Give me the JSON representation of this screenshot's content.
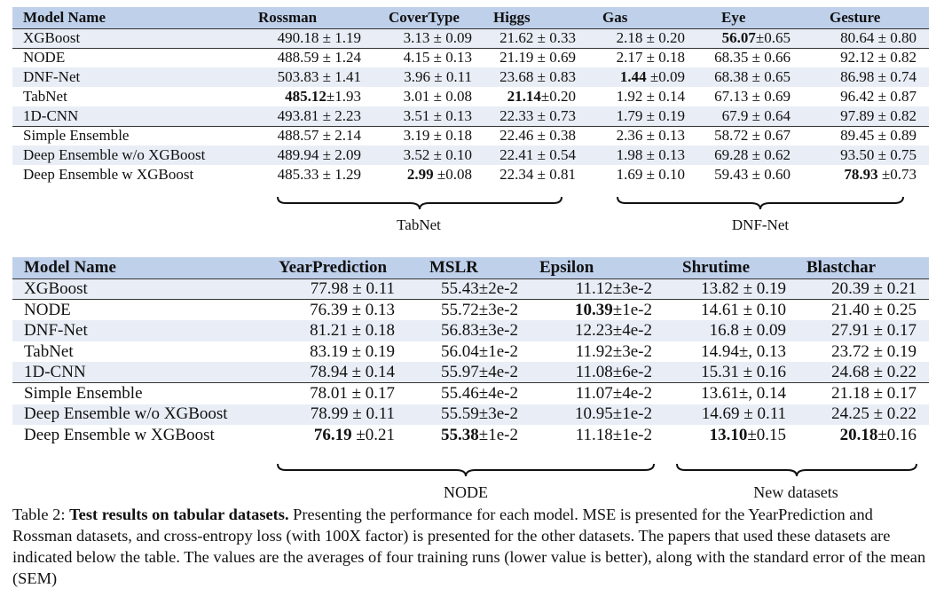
{
  "table1": {
    "headers": [
      "Model Name",
      "Rossman",
      "CoverType",
      "Higgs",
      "Gas",
      "Eye",
      "Gesture"
    ],
    "rows": [
      {
        "model": "XGBoost",
        "cells": [
          [
            "490.18 ± 1.19",
            ""
          ],
          [
            "3.13 ± 0.09",
            ""
          ],
          [
            "21.62 ± 0.33",
            ""
          ],
          [
            "2.18 ± 0.20",
            ""
          ],
          [
            "56.07",
            "±0.65"
          ],
          [
            "80.64 ± 0.80",
            ""
          ]
        ]
      },
      {
        "model": "NODE",
        "cells": [
          [
            "488.59 ± 1.24",
            ""
          ],
          [
            "4.15 ± 0.13",
            ""
          ],
          [
            "21.19 ± 0.69",
            ""
          ],
          [
            "2.17 ± 0.18",
            ""
          ],
          [
            "68.35 ± 0.66",
            ""
          ],
          [
            "92.12 ± 0.82",
            ""
          ]
        ]
      },
      {
        "model": "DNF-Net",
        "cells": [
          [
            "503.83 ± 1.41",
            ""
          ],
          [
            "3.96 ± 0.11",
            ""
          ],
          [
            "23.68 ± 0.83",
            ""
          ],
          [
            "1.44",
            " ±0.09"
          ],
          [
            "68.38 ± 0.65",
            ""
          ],
          [
            "86.98 ± 0.74",
            ""
          ]
        ]
      },
      {
        "model": "TabNet",
        "cells": [
          [
            "485.12",
            "±1.93"
          ],
          [
            "3.01 ± 0.08",
            ""
          ],
          [
            "21.14",
            "±0.20"
          ],
          [
            "1.92 ± 0.14",
            ""
          ],
          [
            "67.13 ± 0.69",
            ""
          ],
          [
            "96.42 ± 0.87",
            ""
          ]
        ]
      },
      {
        "model": "1D-CNN",
        "cells": [
          [
            "493.81 ± 2.23",
            ""
          ],
          [
            "3.51 ± 0.13",
            ""
          ],
          [
            "22.33 ± 0.73",
            ""
          ],
          [
            "1.79 ± 0.19",
            ""
          ],
          [
            "67.9 ± 0.64",
            ""
          ],
          [
            "97.89 ± 0.82",
            ""
          ]
        ]
      },
      {
        "model": "Simple Ensemble",
        "cells": [
          [
            "488.57 ± 2.14",
            ""
          ],
          [
            "3.19 ± 0.18",
            ""
          ],
          [
            "22.46 ± 0.38",
            ""
          ],
          [
            "2.36 ± 0.13",
            ""
          ],
          [
            "58.72 ± 0.67",
            ""
          ],
          [
            "89.45 ± 0.89",
            ""
          ]
        ]
      },
      {
        "model": "Deep Ensemble w/o XGBoost",
        "cells": [
          [
            "489.94 ± 2.09",
            ""
          ],
          [
            "3.52 ± 0.10",
            ""
          ],
          [
            "22.41 ± 0.54",
            ""
          ],
          [
            "1.98 ± 0.13",
            ""
          ],
          [
            "69.28 ± 0.62",
            ""
          ],
          [
            "93.50 ± 0.75",
            ""
          ]
        ]
      },
      {
        "model": "Deep Ensemble w XGBoost",
        "cells": [
          [
            "485.33 ± 1.29",
            ""
          ],
          [
            "2.99",
            " ±0.08"
          ],
          [
            "22.34 ± 0.81",
            ""
          ],
          [
            "1.69 ± 0.10",
            ""
          ],
          [
            "59.43 ± 0.60",
            ""
          ],
          [
            "78.93",
            " ±0.73"
          ]
        ]
      }
    ],
    "brace_labels": [
      "TabNet",
      "DNF-Net"
    ]
  },
  "table2": {
    "headers": [
      "Model Name",
      "YearPrediction",
      "MSLR",
      "Epsilon",
      "Shrutime",
      "Blastchar"
    ],
    "rows": [
      {
        "model": "XGBoost",
        "cells": [
          [
            "77.98 ± 0.11",
            ""
          ],
          [
            "55.43±2e-2",
            ""
          ],
          [
            "11.12±3e-2",
            ""
          ],
          [
            "13.82 ± 0.19",
            ""
          ],
          [
            "20.39 ± 0.21",
            ""
          ]
        ]
      },
      {
        "model": "NODE",
        "cells": [
          [
            "76.39 ± 0.13",
            ""
          ],
          [
            "55.72±3e-2",
            ""
          ],
          [
            "10.39",
            "±1e-2"
          ],
          [
            "14.61 ± 0.10",
            ""
          ],
          [
            "21.40 ± 0.25",
            ""
          ]
        ]
      },
      {
        "model": "DNF-Net",
        "cells": [
          [
            "81.21 ± 0.18",
            ""
          ],
          [
            "56.83±3e-2",
            ""
          ],
          [
            "12.23±4e-2",
            ""
          ],
          [
            "16.8 ± 0.09",
            ""
          ],
          [
            "27.91 ± 0.17",
            ""
          ]
        ]
      },
      {
        "model": "TabNet",
        "cells": [
          [
            "83.19 ± 0.19",
            ""
          ],
          [
            "56.04±1e-2",
            ""
          ],
          [
            "11.92±3e-2",
            ""
          ],
          [
            "14.94±, 0.13",
            ""
          ],
          [
            "23.72 ± 0.19",
            ""
          ]
        ]
      },
      {
        "model": "1D-CNN",
        "cells": [
          [
            "78.94 ± 0.14",
            ""
          ],
          [
            "55.97±4e-2",
            ""
          ],
          [
            "11.08±6e-2",
            ""
          ],
          [
            "15.31 ± 0.16",
            ""
          ],
          [
            "24.68 ± 0.22",
            ""
          ]
        ]
      },
      {
        "model": "Simple Ensemble",
        "cells": [
          [
            "78.01 ± 0.17",
            ""
          ],
          [
            "55.46±4e-2",
            ""
          ],
          [
            "11.07±4e-2",
            ""
          ],
          [
            "13.61±, 0.14",
            ""
          ],
          [
            "21.18 ± 0.17",
            ""
          ]
        ]
      },
      {
        "model": "Deep Ensemble w/o XGBoost",
        "cells": [
          [
            "78.99 ± 0.11",
            ""
          ],
          [
            "55.59±3e-2",
            ""
          ],
          [
            "10.95±1e-2",
            ""
          ],
          [
            "14.69 ± 0.11",
            ""
          ],
          [
            "24.25 ± 0.22",
            ""
          ]
        ]
      },
      {
        "model": "Deep Ensemble w XGBoost",
        "cells": [
          [
            "76.19",
            " ±0.21"
          ],
          [
            "55.38",
            "±1e-2"
          ],
          [
            "11.18±1e-2",
            ""
          ],
          [
            "13.10",
            "±0.15"
          ],
          [
            "20.18",
            "±0.16"
          ]
        ]
      }
    ],
    "brace_labels": [
      "NODE",
      "New datasets"
    ]
  },
  "caption": {
    "label": "Table 2:",
    "title": "Test results on tabular datasets.",
    "body": "Presenting the performance for each model. MSE is presented for the YearPrediction and Rossman datasets, and cross-entropy loss (with 100X factor) is presented for the other datasets. The papers that used these datasets are indicated below the table. The values are the averages of four training runs (lower value is better), along with the standard error of the mean (SEM)"
  }
}
